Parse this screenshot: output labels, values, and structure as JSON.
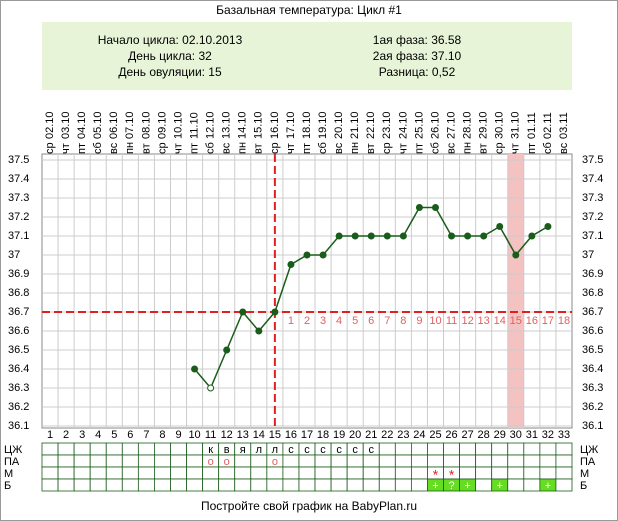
{
  "title": "Базальная температура: Цикл #1",
  "info": {
    "left": [
      "Начало цикла: 02.10.2013",
      "День цикла: 32",
      "День овуляции: 15"
    ],
    "right": [
      "1ая фаза: 36.58",
      "2ая фаза: 37.10",
      "Разница: 0,52"
    ]
  },
  "chart_data": {
    "type": "line",
    "x": [
      1,
      2,
      3,
      4,
      5,
      6,
      7,
      8,
      9,
      10,
      11,
      12,
      13,
      14,
      15,
      16,
      17,
      18,
      19,
      20,
      21,
      22,
      23,
      24,
      25,
      26,
      27,
      28,
      29,
      30,
      31,
      32,
      33
    ],
    "dates": [
      "02.10",
      "03.10",
      "04.10",
      "05.10",
      "06.10",
      "07.10",
      "08.10",
      "09.10",
      "10.10",
      "11.10",
      "12.10",
      "13.10",
      "14.10",
      "15.10",
      "16.10",
      "17.10",
      "18.10",
      "19.10",
      "20.10",
      "21.10",
      "22.10",
      "23.10",
      "24.10",
      "25.10",
      "26.10",
      "27.10",
      "28.10",
      "29.10",
      "30.10",
      "31.10",
      "01.11",
      "02.11",
      "03.11"
    ],
    "weekdays": [
      "ср",
      "чт",
      "пт",
      "сб",
      "вс",
      "пн",
      "вт",
      "ср",
      "чт",
      "пт",
      "сб",
      "вс",
      "пн",
      "вт",
      "ср",
      "чт",
      "пт",
      "сб",
      "вс",
      "пн",
      "вт",
      "ср",
      "чт",
      "пт",
      "сб",
      "вс",
      "пн",
      "вт",
      "ср",
      "чт",
      "пт",
      "сб",
      "вс"
    ],
    "values": [
      null,
      null,
      null,
      null,
      null,
      null,
      null,
      null,
      null,
      36.4,
      36.3,
      36.5,
      36.7,
      36.6,
      36.7,
      36.95,
      37.0,
      37.0,
      37.1,
      37.1,
      37.1,
      37.1,
      37.1,
      37.25,
      37.25,
      37.1,
      37.1,
      37.1,
      37.15,
      37.0,
      37.1,
      37.15,
      null
    ],
    "color": "#1a5c1a",
    "excluded_days": [
      11
    ],
    "ylim": [
      36.1,
      37.5
    ],
    "yticks": [
      36.1,
      36.2,
      36.3,
      36.4,
      36.5,
      36.6,
      36.7,
      36.8,
      36.9,
      37.0,
      37.1,
      37.2,
      37.3,
      37.4,
      37.5
    ],
    "grid": true,
    "coverline": 36.7,
    "ovulation_day": 15,
    "highlight_day": 30,
    "phase2_labels": [
      1,
      2,
      3,
      4,
      5,
      6,
      7,
      8,
      9,
      10,
      11,
      12,
      13,
      14,
      15,
      16,
      17,
      18
    ]
  },
  "rows": [
    {
      "label": "ЦЖ",
      "cells": [
        null,
        null,
        null,
        null,
        null,
        null,
        null,
        null,
        null,
        null,
        "к",
        "в",
        "я",
        "л",
        "л",
        "с",
        "с",
        "с",
        "с",
        "с",
        "с",
        null,
        null,
        null,
        null,
        null,
        null,
        null,
        null,
        null,
        null,
        null,
        null
      ]
    },
    {
      "label": "ПА",
      "cells": [
        null,
        null,
        null,
        null,
        null,
        null,
        null,
        null,
        null,
        null,
        "о",
        "о",
        null,
        null,
        "о",
        null,
        null,
        null,
        null,
        null,
        null,
        null,
        null,
        null,
        null,
        null,
        null,
        null,
        null,
        null,
        null,
        null,
        null
      ]
    },
    {
      "label": "М",
      "cells": [
        null,
        null,
        null,
        null,
        null,
        null,
        null,
        null,
        null,
        null,
        null,
        null,
        null,
        null,
        null,
        null,
        null,
        null,
        null,
        null,
        null,
        null,
        null,
        null,
        "*",
        "*",
        null,
        null,
        null,
        null,
        null,
        null,
        null
      ]
    },
    {
      "label": "Б",
      "cells": [
        null,
        null,
        null,
        null,
        null,
        null,
        null,
        null,
        null,
        null,
        null,
        null,
        null,
        null,
        null,
        null,
        null,
        null,
        null,
        null,
        null,
        null,
        null,
        null,
        "+",
        "?",
        "+",
        null,
        "+",
        null,
        null,
        "+",
        null
      ]
    }
  ],
  "footer": "Постройте свой график на BabyPlan.ru"
}
